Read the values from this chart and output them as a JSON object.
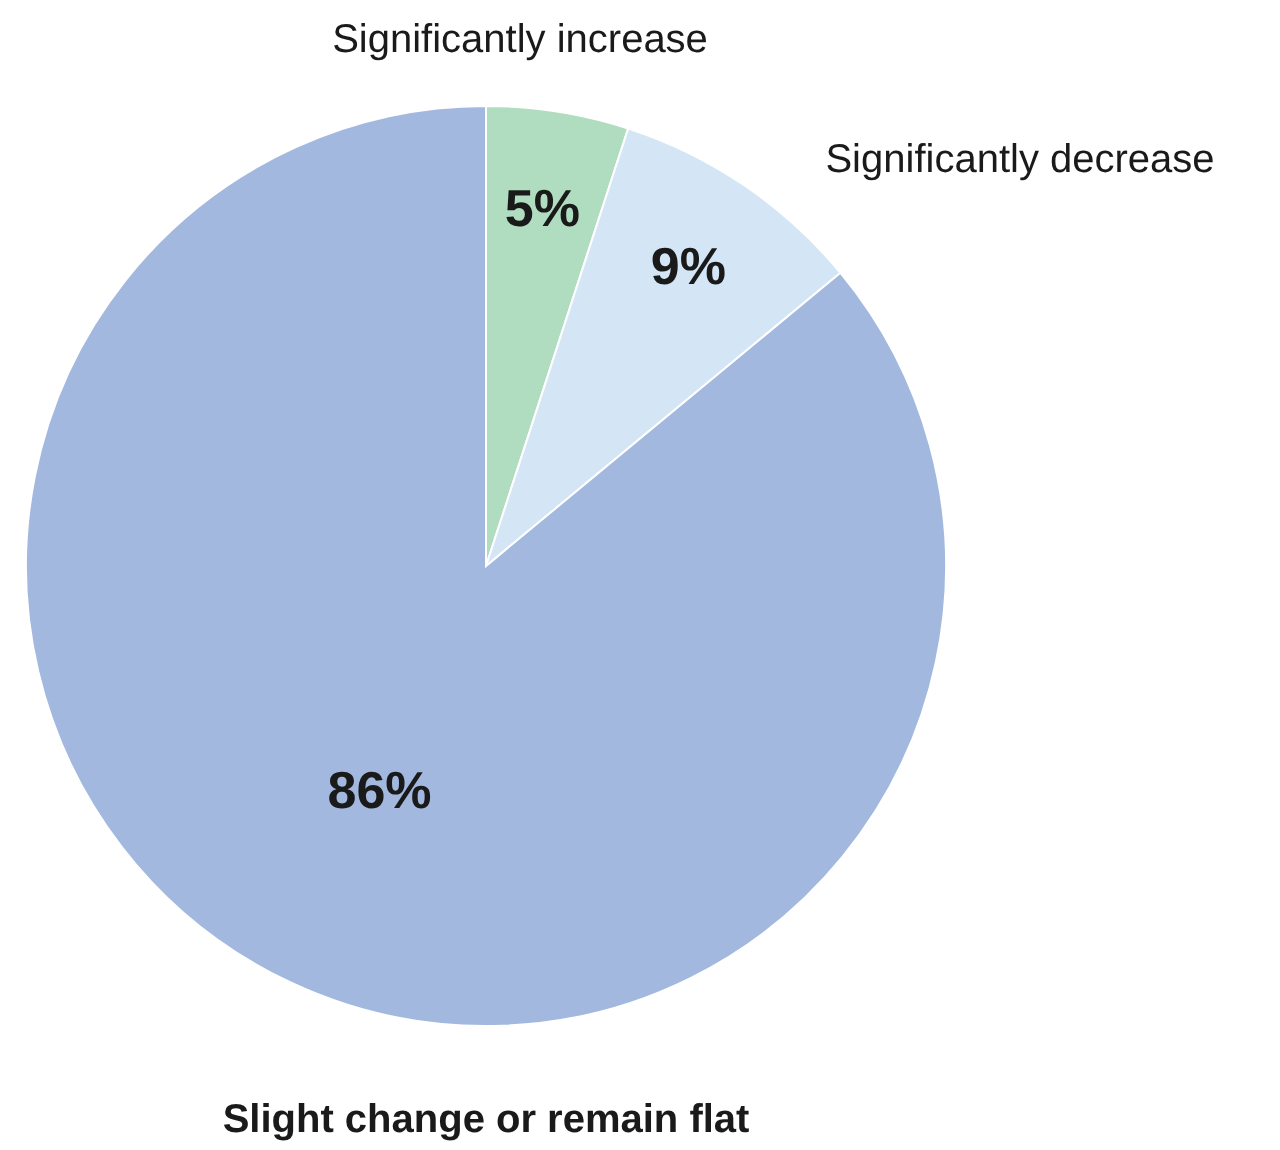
{
  "chart_data": {
    "type": "pie",
    "categories": [
      "Significantly increase",
      "Significantly decrease",
      "Slight change or remain flat"
    ],
    "values": [
      5,
      9,
      86
    ],
    "colors": [
      "#b0dcbf",
      "#d4e6f5",
      "#a2b8de"
    ],
    "value_labels": [
      "5%",
      "9%",
      "86%"
    ]
  }
}
